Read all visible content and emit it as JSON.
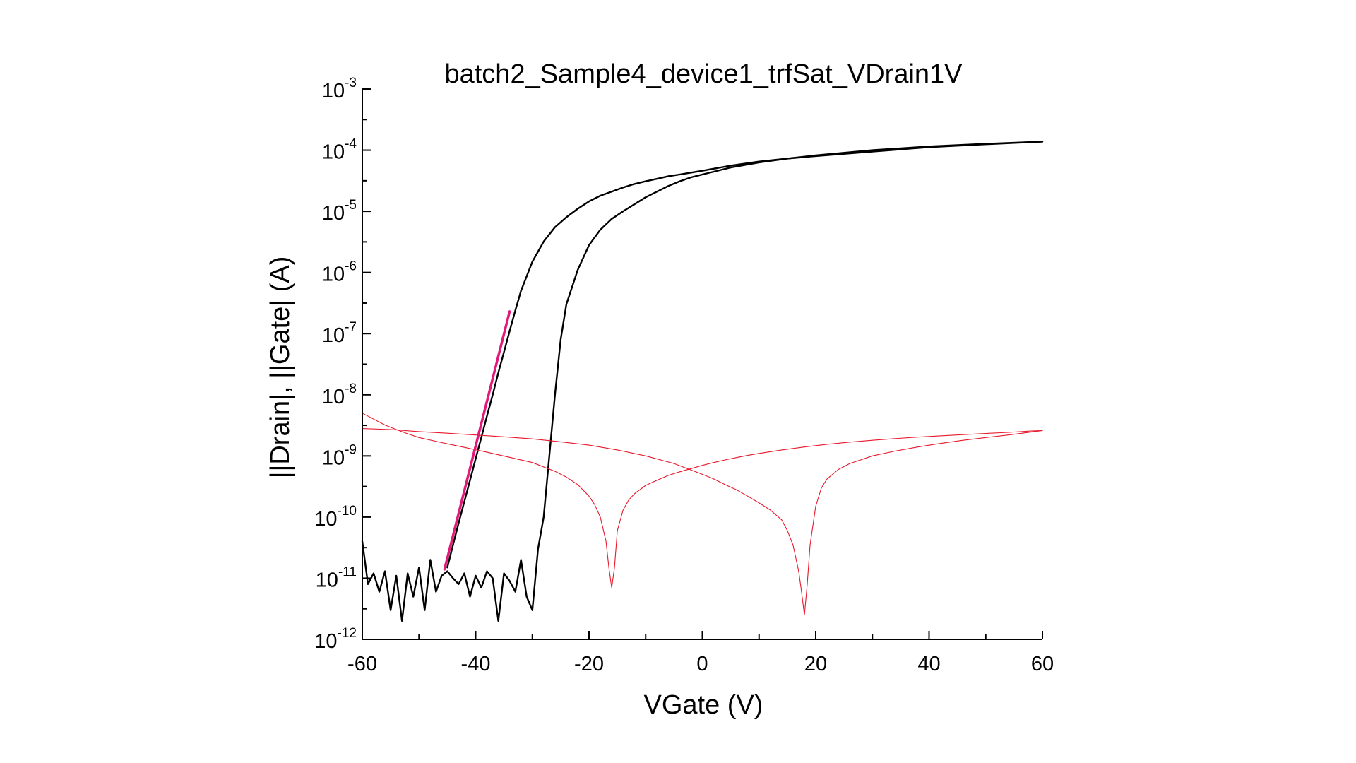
{
  "chart_data": {
    "type": "line",
    "title": "batch2_Sample4_device1_trfSat_VDrain1V",
    "xlabel": "VGate (V)",
    "ylabel": "||Drain|, ||Gate| (A)",
    "xlim": [
      -60,
      60
    ],
    "ylim": [
      1e-12,
      0.001
    ],
    "yscale": "log",
    "x_ticks": [
      -60,
      -40,
      -20,
      0,
      20,
      40,
      60
    ],
    "x_tick_labels": [
      "-60",
      "-40",
      "-20",
      "0",
      "20",
      "40",
      "60"
    ],
    "y_ticks": [
      -12,
      -11,
      -10,
      -9,
      -8,
      -7,
      -6,
      -5,
      -4,
      -3
    ],
    "y_tick_base": "10",
    "y_tick_exponents": [
      "-12",
      "-11",
      "-10",
      "-9",
      "-8",
      "-7",
      "-6",
      "-5",
      "-4",
      "-3"
    ],
    "grid": false,
    "series": [
      {
        "color": "#000000",
        "x": [
          -60,
          -59,
          -58,
          -57,
          -56,
          -55,
          -54,
          -53,
          -52,
          -51,
          -50,
          -49,
          -48,
          -47,
          -46,
          -45,
          -44,
          -43,
          -42,
          -41,
          -40,
          -39,
          -38,
          -37,
          -36,
          -35,
          -34,
          -33,
          -32,
          -31,
          -30,
          -29,
          -28,
          -27,
          -26,
          -25,
          -24,
          -22,
          -20,
          -18,
          -16,
          -14,
          -12,
          -10,
          -8,
          -6,
          -4,
          -2,
          0,
          5,
          10,
          15,
          20,
          30,
          40,
          50,
          60
        ],
        "y": [
          4e-11,
          8e-12,
          1.2e-11,
          6e-12,
          1.3e-11,
          3e-12,
          1.1e-11,
          2e-12,
          1.2e-11,
          5e-12,
          1.5e-11,
          3e-12,
          2e-11,
          6e-12,
          1.1e-11,
          1.3e-11,
          1e-11,
          8e-12,
          1.2e-11,
          5e-12,
          1.1e-11,
          7e-12,
          1.3e-11,
          1e-11,
          2e-12,
          1.2e-11,
          9e-12,
          6e-12,
          2e-11,
          5e-12,
          3e-12,
          3e-11,
          1e-10,
          1e-09,
          1e-08,
          8e-08,
          3e-07,
          1.1e-06,
          2.8e-06,
          5e-06,
          7.5e-06,
          1e-05,
          1.3e-05,
          1.7e-05,
          2.1e-05,
          2.6e-05,
          3.1e-05,
          3.6e-05,
          4e-05,
          5.2e-05,
          6.3e-05,
          7.3e-05,
          8.2e-05,
          0.0001,
          0.000115,
          0.000127,
          0.000138
        ]
      },
      {
        "color": "#000000",
        "x": [
          -45,
          -44,
          -43,
          -42,
          -41,
          -40,
          -39,
          -38,
          -37,
          -36,
          -35,
          -34,
          -33,
          -32,
          -30,
          -28,
          -26,
          -24,
          -22,
          -20,
          -18,
          -16,
          -14,
          -12,
          -10,
          -8,
          -6,
          -4,
          -2,
          0,
          5,
          10,
          15,
          20,
          30,
          40,
          50,
          60
        ],
        "y": [
          1.5e-11,
          3.5e-11,
          8e-11,
          1.8e-10,
          4e-10,
          9e-10,
          2e-09,
          4.5e-09,
          1e-08,
          2.3e-08,
          5e-08,
          1.1e-07,
          2.4e-07,
          5e-07,
          1.5e-06,
          3.2e-06,
          5.5e-06,
          8e-06,
          1.1e-05,
          1.45e-05,
          1.8e-05,
          2.1e-05,
          2.45e-05,
          2.8e-05,
          3.1e-05,
          3.4e-05,
          3.75e-05,
          4e-05,
          4.3e-05,
          4.6e-05,
          5.6e-05,
          6.5e-05,
          7.3e-05,
          8e-05,
          9.5e-05,
          0.000112,
          0.000125,
          0.000138
        ]
      },
      {
        "color": "#e8192c",
        "x": [
          -60,
          -58,
          -56,
          -54,
          -52,
          -50,
          -46,
          -42,
          -38,
          -34,
          -30,
          -26,
          -24,
          -22,
          -20,
          -19,
          -18,
          -17,
          -16.5,
          -16,
          -15.5,
          -15,
          -14,
          -13,
          -12,
          -10,
          -8,
          -6,
          -4,
          -2,
          0,
          2,
          4,
          6,
          8,
          10,
          14,
          18,
          22,
          26,
          30,
          34,
          38,
          42,
          46,
          50,
          54,
          58,
          60
        ],
        "y": [
          5e-09,
          4e-09,
          3.2e-09,
          2.7e-09,
          2.3e-09,
          2e-09,
          1.65e-09,
          1.38e-09,
          1.15e-09,
          9.5e-10,
          7.8e-10,
          5.6e-10,
          4.5e-10,
          3.4e-10,
          2.2e-10,
          1.6e-10,
          1e-10,
          4e-11,
          1.5e-11,
          7e-12,
          1.5e-11,
          6e-11,
          1.3e-10,
          1.9e-10,
          2.4e-10,
          3.3e-10,
          4e-10,
          4.8e-10,
          5.5e-10,
          6.2e-10,
          7e-10,
          7.8e-10,
          8.6e-10,
          9.4e-10,
          1.02e-09,
          1.1e-09,
          1.25e-09,
          1.4e-09,
          1.55e-09,
          1.68e-09,
          1.8e-09,
          1.92e-09,
          2.03e-09,
          2.13e-09,
          2.23e-09,
          2.33e-09,
          2.43e-09,
          2.55e-09,
          2.6e-09
        ]
      },
      {
        "color": "#e8192c",
        "x": [
          -60,
          -55,
          -50,
          -45,
          -40,
          -35,
          -30,
          -25,
          -20,
          -15,
          -10,
          -5,
          0,
          2,
          4,
          6,
          8,
          10,
          12,
          14,
          15,
          16,
          17,
          17.5,
          18,
          18.5,
          19,
          20,
          21,
          22,
          24,
          26,
          30,
          34,
          38,
          42,
          46,
          50,
          54,
          58,
          60
        ],
        "y": [
          2.8e-09,
          2.7e-09,
          2.5e-09,
          2.35e-09,
          2.2e-09,
          2.05e-09,
          1.9e-09,
          1.7e-09,
          1.5e-09,
          1.25e-09,
          1e-09,
          7.5e-10,
          5e-10,
          4.2e-10,
          3.4e-10,
          2.8e-10,
          2.2e-10,
          1.7e-10,
          1.3e-10,
          9e-11,
          6e-11,
          3.5e-11,
          1.3e-11,
          6e-12,
          2.5e-12,
          8e-12,
          3.5e-11,
          1.5e-10,
          3e-10,
          4.2e-10,
          6e-10,
          7.5e-10,
          1e-09,
          1.2e-09,
          1.4e-09,
          1.6e-09,
          1.8e-09,
          2e-09,
          2.2e-09,
          2.45e-09,
          2.6e-09
        ]
      },
      {
        "color": "#e0197a",
        "x": [
          -45.5,
          -34
        ],
        "y": [
          1.4e-11,
          2.3e-07
        ]
      }
    ]
  }
}
